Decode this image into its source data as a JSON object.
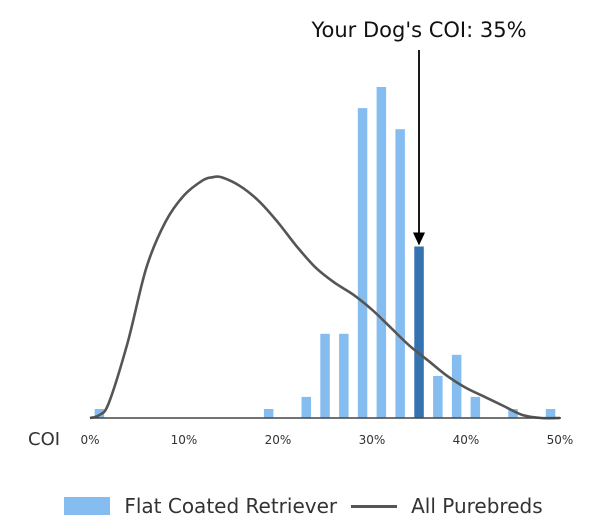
{
  "chart_data": {
    "type": "bar",
    "title": "",
    "xlabel": "COI",
    "ylabel": "",
    "xlim": [
      0,
      50
    ],
    "x_ticks": [
      0,
      10,
      20,
      30,
      40,
      50
    ],
    "x_tick_labels": [
      "0%",
      "10%",
      "20%",
      "30%",
      "40%",
      "50%"
    ],
    "grid": false,
    "legend_position": "bottom-center",
    "annotation": {
      "text": "Your Dog's COI: 35%",
      "x": 35
    },
    "series": [
      {
        "name": "Flat Coated Retriever",
        "kind": "bar",
        "color": "#85bdf0",
        "highlight_color": "#3473b0",
        "highlight_x": 35,
        "bar_x": [
          1,
          19,
          23,
          25,
          27,
          29,
          31,
          33,
          35,
          37,
          39,
          41,
          45,
          49
        ],
        "bar_values": [
          3,
          3,
          7,
          28,
          28,
          103,
          110,
          96,
          57,
          14,
          21,
          7,
          3,
          3
        ]
      },
      {
        "name": "All Purebreds",
        "kind": "line",
        "color": "#555555",
        "x": [
          0,
          1,
          2,
          4,
          6,
          8,
          10,
          12,
          13,
          14,
          16,
          18,
          20,
          22,
          24,
          26,
          28,
          30,
          32,
          34,
          36,
          38,
          40,
          42,
          44,
          46,
          48,
          50
        ],
        "y": [
          0,
          1,
          5,
          25,
          50,
          65,
          74,
          79,
          80,
          80,
          77,
          72,
          65,
          57,
          50,
          45,
          41,
          36,
          30,
          24,
          19,
          14,
          10,
          7,
          4,
          1,
          0,
          0
        ]
      }
    ],
    "ylim": [
      0,
      115
    ]
  },
  "legend": {
    "bar_label": "Flat Coated Retriever",
    "line_label": "All Purebreds",
    "bar_color": "#85bdf0",
    "line_color": "#555555"
  }
}
